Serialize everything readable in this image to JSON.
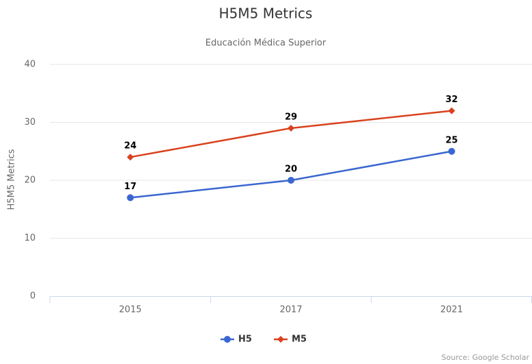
{
  "chart_data": {
    "type": "line",
    "title": "H5M5 Metrics",
    "subtitle": "Educación Médica Superior",
    "y_label": "H5M5 Metrics",
    "credit": "Source: Google Scholar",
    "categories": [
      "2015",
      "2017",
      "2021"
    ],
    "series": [
      {
        "name": "H5",
        "color": "#3a66d0",
        "marker": "circle",
        "values": [
          17,
          20,
          25
        ]
      },
      {
        "name": "M5",
        "color": "#d9411e",
        "marker": "diamond",
        "values": [
          24,
          29,
          32
        ]
      }
    ],
    "ylim": [
      0,
      40
    ],
    "yticks": [
      0,
      10,
      20,
      30,
      40
    ],
    "grid": true
  }
}
